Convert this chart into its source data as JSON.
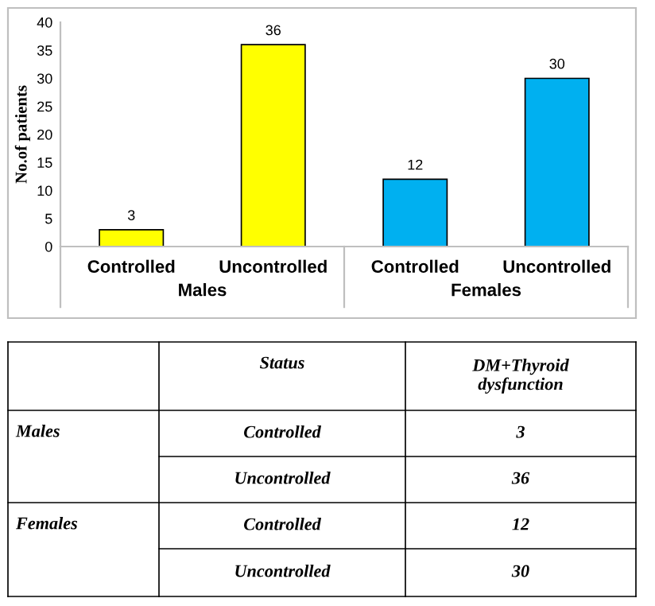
{
  "chart_data": {
    "type": "bar",
    "ylabel": "No.of patients",
    "categories": [
      "Controlled",
      "Uncontrolled",
      "Controlled",
      "Uncontrolled"
    ],
    "series": [
      {
        "name": "Males",
        "color": "#ffff00",
        "values": [
          3,
          36,
          null,
          null
        ],
        "value_labels": [
          "3",
          "36",
          null,
          null
        ]
      },
      {
        "name": "Females",
        "color": "#00b0f0",
        "values": [
          null,
          null,
          12,
          30
        ],
        "value_labels": [
          null,
          null,
          "12",
          "30"
        ]
      }
    ],
    "ylim": [
      0,
      40
    ],
    "yticks": [
      0,
      5,
      10,
      15,
      20,
      25,
      30,
      35,
      40
    ],
    "grid": false,
    "legend": false,
    "annotations": [
      "Status",
      "DM+Thyroid dysfunction"
    ]
  }
}
